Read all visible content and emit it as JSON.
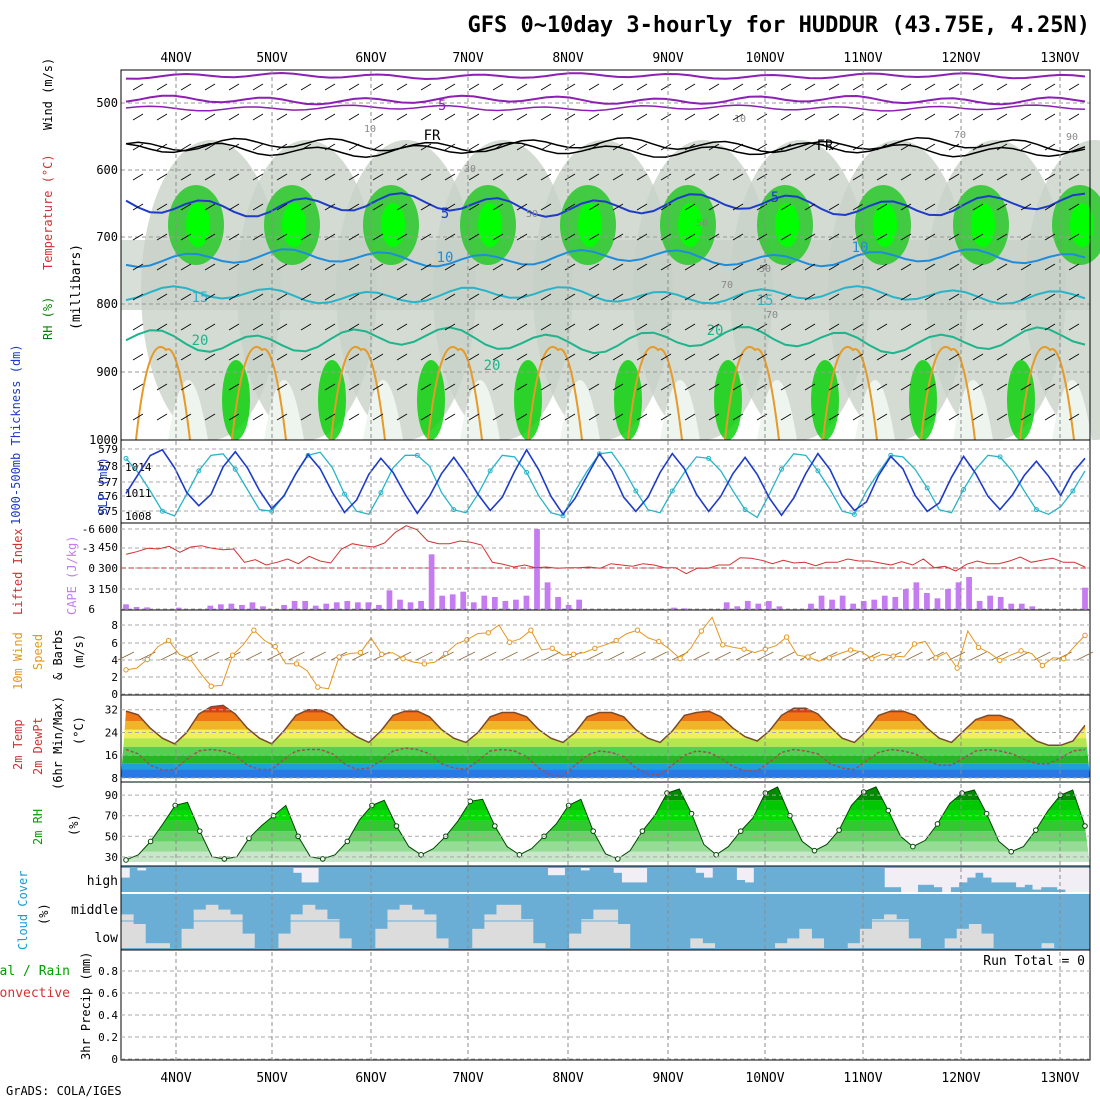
{
  "title": "GFS 0~10day 3-hourly for HUDDUR (43.75E, 4.25N)",
  "footer": "GrADS: COLA/IGES",
  "run_total": "Run Total = 0",
  "colors": {
    "rh_green": "#00e600",
    "temp_orange": "#e69a28",
    "wind_purple": "#8c1fb4",
    "slp_blue": "#1e3cc8",
    "thick_cyan": "#28b4c8",
    "cape_purple": "#c47cf0",
    "li_red": "#d23232",
    "wind_speed": "#e6961e",
    "cloud_blue": "#6aaed6",
    "precip_green": "#00b400"
  },
  "chart_data": {
    "type": "multi-panel",
    "days": [
      "4NOV",
      "5NOV",
      "6NOV",
      "7NOV",
      "8NOV",
      "9NOV",
      "10NOV",
      "11NOV",
      "12NOV",
      "13NOV"
    ],
    "panels": [
      {
        "id": "cross-section",
        "ylabel_parts": [
          "RH (%)",
          "Temperature (°C)",
          "Wind (m/s)"
        ],
        "ylabel2": "(millibars)",
        "yticks": [
          "500",
          "600",
          "700",
          "800",
          "900",
          "1000"
        ],
        "contour_labels": [
          "-5",
          "FR",
          "FR",
          "5",
          "10",
          "15",
          "20",
          "20",
          "10",
          "5",
          "15",
          "20",
          "10",
          "10",
          "30",
          "50",
          "50",
          "70",
          "70",
          "70",
          "90",
          "50"
        ]
      },
      {
        "id": "slp-thickness",
        "ylabel_left": "1000-500mb Thickness (dm)",
        "ylabel_right": "SLP (mb)",
        "yticks_left": [
          "579",
          "578",
          "577",
          "576",
          "575"
        ],
        "yticks_right": [
          "1014",
          "1011",
          "1008"
        ],
        "thickness": [
          578.4,
          577.5,
          576.3,
          575.0,
          574.7,
          576.1,
          577.6,
          578.6,
          578.7,
          577.7,
          576.4,
          575.1,
          575.0,
          576.0,
          577.4,
          578.6,
          578.8,
          577.8,
          576.1,
          575.0,
          574.8,
          576.2,
          577.8,
          578.6,
          578.6,
          577.9,
          576.2,
          575.1,
          574.9,
          576.1,
          577.6,
          578.6,
          578.5,
          577.5,
          576.0,
          574.9,
          574.7,
          576.3,
          577.6,
          578.7,
          578.8,
          577.7,
          576.3,
          575.1,
          574.9,
          576.3,
          577.5,
          578.5,
          578.4,
          577.6,
          576.3,
          575.1,
          574.6,
          576.1,
          577.7,
          578.7,
          578.6,
          577.6,
          576.4,
          575.0,
          574.8,
          576.3,
          577.5,
          578.6,
          578.5,
          577.7,
          576.5,
          575.1,
          574.9,
          576.4,
          577.7,
          578.6,
          578.5,
          577.6,
          576.3,
          575.1,
          574.8,
          575.3,
          576.3,
          577.6
        ],
        "slp": [
          1010.5,
          1012.5,
          1014.5,
          1015.1,
          1013.2,
          1010.6,
          1009.2,
          1010.4,
          1013.3,
          1014.9,
          1013.2,
          1010.8,
          1008.9,
          1010.2,
          1012.6,
          1014.6,
          1013.1,
          1010.6,
          1008.5,
          1009.8,
          1012.5,
          1014.2,
          1012.7,
          1010.4,
          1008.4,
          1010.2,
          1012.6,
          1014.3,
          1012.5,
          1010.4,
          1008.7,
          1010.1,
          1012.8,
          1015.1,
          1013.0,
          1010.2,
          1008.3,
          1010.0,
          1012.4,
          1014.7,
          1012.9,
          1010.1,
          1008.6,
          1010.1,
          1012.7,
          1014.7,
          1013.1,
          1010.4,
          1008.6,
          1010.2,
          1012.6,
          1014.3,
          1012.5,
          1010.0,
          1008.2,
          1010.0,
          1012.6,
          1014.7,
          1013.0,
          1010.3,
          1008.7,
          1009.6,
          1012.4,
          1014.4,
          1013.1,
          1010.3,
          1008.6,
          1009.5,
          1012.2,
          1014.4,
          1012.6,
          1010.2,
          1008.8,
          1010.3,
          1012.4,
          1013.9,
          1012.3,
          1010.3,
          1012.7,
          1014.2
        ]
      },
      {
        "id": "cape-li",
        "ylabel_left": "Lifted Index",
        "ylabel_right": "CAPE (J/kg)",
        "yticks_left": [
          "-6",
          "-3",
          "0",
          "3",
          "6"
        ],
        "yticks_right": [
          "600",
          "450",
          "300",
          "150"
        ],
        "cape": [
          35,
          15,
          12,
          0,
          0,
          10,
          0,
          0,
          25,
          35,
          40,
          30,
          50,
          20,
          0,
          30,
          60,
          60,
          25,
          40,
          50,
          60,
          50,
          50,
          30,
          140,
          70,
          50,
          60,
          410,
          100,
          110,
          130,
          50,
          100,
          90,
          60,
          70,
          100,
          600,
          200,
          90,
          30,
          70,
          0,
          0,
          0,
          0,
          0,
          0,
          0,
          0,
          10,
          5,
          0,
          0,
          0,
          50,
          20,
          60,
          40,
          60,
          20,
          0,
          0,
          40,
          100,
          70,
          100,
          40,
          60,
          70,
          100,
          90,
          150,
          200,
          120,
          80,
          150,
          200,
          240,
          60,
          100,
          90,
          40,
          40,
          20,
          0,
          0,
          0,
          0,
          160
        ],
        "li": [
          2.2,
          2.6,
          3.1,
          3.0,
          3.4,
          2.5,
          3.3,
          3.5,
          3.1,
          2.9,
          3.0,
          1.0,
          1.4,
          0.6,
          1.0,
          1.5,
          0.8,
          1.9,
          1.2,
          0.9,
          3.0,
          3.8,
          3.5,
          3.3,
          3.9,
          5.5,
          6.5,
          5.9,
          4.2,
          3.8,
          3.8,
          4.2,
          4.0,
          3.6,
          1.0,
          0.7,
          0.3,
          0.6,
          0.2,
          0.3,
          0.1,
          0.2,
          0.2,
          0.3,
          0.1,
          0.8,
          0.6,
          0.4,
          0.8,
          0.6,
          0.2,
          0.2,
          -0.7,
          0.1,
          0.1,
          0.6,
          0.6,
          1.7,
          1.6,
          1.3,
          0.8,
          1.3,
          0.9,
          1.0,
          0.5,
          1.0,
          1.0,
          1.5,
          1.2,
          1.2,
          0.9,
          0.6,
          1.1,
          0.6,
          1.5,
          0.2,
          0.4,
          -0.3,
          0.7,
          1.2,
          0.8,
          0.8,
          1.2,
          1.8,
          1.0,
          1.3,
          1.6,
          1.0,
          1.0,
          0.3
        ]
      },
      {
        "id": "wind",
        "ylabel_parts": [
          "10m Wind",
          "Speed",
          "& Barbs"
        ],
        "ylabel2": "(m/s)",
        "yticks": [
          "8",
          "6",
          "4",
          "2",
          "0"
        ],
        "speed": [
          2.8,
          3.0,
          4.0,
          5.5,
          6.2,
          4.6,
          4.1,
          2.4,
          0.9,
          1.0,
          4.5,
          5.7,
          7.4,
          6.2,
          5.5,
          3.5,
          3.5,
          2.7,
          0.8,
          0.6,
          4.3,
          4.7,
          4.8,
          6.5,
          4.6,
          4.8,
          4.1,
          3.7,
          3.5,
          3.7,
          4.7,
          5.8,
          6.3,
          7.0,
          7.1,
          8.0,
          6.0,
          6.4,
          7.4,
          5.1,
          5.3,
          4.5,
          4.6,
          4.8,
          5.3,
          5.7,
          6.2,
          7.0,
          7.4,
          6.5,
          6.1,
          5.2,
          4.1,
          5.3,
          7.3,
          8.9,
          5.7,
          5.4,
          5.2,
          4.8,
          5.2,
          5.6,
          6.6,
          4.5,
          4.3,
          3.8,
          4.2,
          4.7,
          5.1,
          4.9,
          4.1,
          4.6,
          4.4,
          4.3,
          5.8,
          6.1,
          4.2,
          4.8,
          3.0,
          7.3,
          5.4,
          4.8,
          3.9,
          4.5,
          5.0,
          4.7,
          3.3,
          4.2,
          4.1,
          5.5,
          6.8
        ]
      },
      {
        "id": "temp",
        "ylabel_parts": [
          "2m Temp",
          "2m DewPt",
          "(6hr Min/Max)"
        ],
        "ylabel2": "(°C)",
        "yticks": [
          "32",
          "24",
          "16",
          "8"
        ],
        "temp": [
          31.5,
          30.2,
          25.5,
          22,
          20,
          24,
          30.5,
          33,
          33.5,
          30.5,
          25.5,
          22,
          20,
          24.5,
          30,
          32,
          32,
          30,
          25.5,
          22.5,
          20.5,
          24.5,
          30,
          31.5,
          31.5,
          29.5,
          25,
          22,
          20.5,
          24,
          29.5,
          31,
          31,
          29.5,
          25,
          22,
          20.5,
          24,
          29.5,
          31,
          31,
          29.5,
          25,
          22,
          20.5,
          24.5,
          30,
          31,
          31.5,
          29.5,
          25.5,
          22.5,
          21,
          24.5,
          30,
          32.5,
          32.5,
          30.5,
          26,
          22,
          20.5,
          24.5,
          30,
          31.5,
          31.5,
          30,
          25.5,
          22,
          20.5,
          24.5,
          28.5,
          30,
          30,
          28.5,
          24.5,
          21,
          19.5,
          19.5,
          21,
          26.5
        ],
        "dewpt": [
          18,
          16.5,
          12.5,
          10.8,
          11,
          14.5,
          17.5,
          18,
          17.5,
          16,
          12.5,
          11,
          11,
          14.5,
          17.5,
          18,
          18,
          16.5,
          13,
          11,
          11.5,
          14,
          17.5,
          18.5,
          18,
          16.5,
          13,
          11.5,
          11,
          14,
          17.5,
          18,
          17.5,
          15.5,
          11.5,
          9,
          8.7,
          12.5,
          16,
          17.5,
          17,
          15.5,
          11.5,
          9.5,
          9,
          12.5,
          16,
          17.5,
          17,
          15,
          12,
          10.5,
          10.5,
          13.5,
          17,
          18,
          17.5,
          16.5,
          13,
          11.5,
          11,
          14,
          17,
          18,
          17.5,
          16.5,
          14,
          12.5,
          12.5,
          15,
          17.5,
          18,
          17.5,
          16.5,
          14.5,
          13,
          13,
          15,
          17.5,
          18
        ]
      },
      {
        "id": "rh",
        "ylabel": "2m RH",
        "ylabel2": "(%)",
        "yticks": [
          "90",
          "70",
          "50",
          "30"
        ],
        "rh": [
          27,
          32,
          45,
          62,
          80,
          83,
          55,
          30,
          28,
          30,
          48,
          60,
          70,
          80,
          50,
          30,
          28,
          32,
          45,
          66,
          80,
          85,
          60,
          40,
          32,
          38,
          50,
          65,
          84,
          86,
          60,
          40,
          32,
          38,
          50,
          62,
          80,
          86,
          55,
          33,
          28,
          36,
          55,
          70,
          92,
          96,
          72,
          42,
          32,
          40,
          55,
          68,
          92,
          98,
          70,
          45,
          36,
          42,
          56,
          80,
          93,
          98,
          75,
          50,
          40,
          46,
          62,
          82,
          92,
          95,
          72,
          45,
          35,
          40,
          56,
          75,
          90,
          95,
          60
        ]
      },
      {
        "id": "cloud",
        "ylabel": "Cloud Cover",
        "ylabel2": "(%)",
        "levels": [
          "high",
          "middle",
          "low"
        ],
        "high": [
          40,
          0,
          10,
          0,
          0,
          0,
          0,
          0,
          0,
          0,
          0,
          0,
          0,
          0,
          0,
          0,
          0,
          0,
          0,
          0,
          0,
          20,
          60,
          60,
          0,
          0,
          0,
          0,
          0,
          0,
          0,
          0,
          0,
          0,
          0,
          0,
          0,
          0,
          0,
          0,
          0,
          0,
          0,
          0,
          0,
          0,
          0,
          0,
          0,
          0,
          0,
          0,
          30,
          30,
          0,
          0,
          10,
          0,
          0,
          0,
          20,
          60,
          60,
          60,
          0,
          0,
          0,
          0,
          0,
          0,
          20,
          40,
          0,
          0,
          0,
          50,
          60,
          0,
          0,
          0,
          0,
          0,
          0,
          0,
          0,
          0,
          0,
          0,
          0,
          0,
          0,
          0,
          0,
          80,
          80,
          100,
          100,
          70,
          70,
          80,
          100,
          80,
          60,
          40,
          20,
          40,
          60,
          60,
          60,
          80,
          70,
          90,
          80,
          80,
          90,
          100,
          100,
          100
        ],
        "middle": [
          0,
          0,
          0,
          0,
          0,
          0,
          0,
          0,
          0,
          0,
          0,
          0,
          0,
          0,
          0,
          0,
          0,
          0,
          0,
          0,
          0,
          0,
          0,
          0,
          0,
          0,
          0,
          0,
          0,
          0,
          0,
          0,
          0,
          0,
          0,
          0,
          0,
          0,
          0,
          0,
          0,
          0,
          0,
          0,
          0,
          0,
          0,
          0,
          0,
          0,
          0,
          0,
          0,
          0,
          0,
          0,
          0,
          0,
          0,
          0,
          0,
          0,
          0,
          0,
          0,
          0,
          0,
          0,
          0,
          0,
          0,
          0,
          0,
          0,
          0,
          0,
          0,
          0,
          0,
          0,
          0,
          0,
          0,
          0,
          0,
          0,
          0,
          0,
          0,
          0,
          0,
          0,
          0,
          0,
          0,
          0,
          0,
          0,
          0,
          0,
          0,
          0,
          0,
          0,
          0,
          0,
          0,
          0,
          0,
          0,
          0,
          0,
          0,
          0,
          0,
          0,
          0,
          0,
          0
        ],
        "low": [
          70,
          50,
          10,
          10,
          0,
          40,
          80,
          90,
          80,
          70,
          30,
          0,
          0,
          30,
          70,
          90,
          80,
          60,
          20,
          0,
          0,
          40,
          80,
          90,
          80,
          70,
          20,
          0,
          0,
          40,
          70,
          90,
          90,
          60,
          10,
          0,
          0,
          30,
          60,
          80,
          80,
          50,
          0,
          0,
          0,
          0,
          0,
          20,
          10,
          0,
          0,
          0,
          0,
          0,
          10,
          20,
          40,
          20,
          0,
          0,
          10,
          40,
          60,
          70,
          60,
          20,
          0,
          0,
          20,
          40,
          50,
          30,
          0,
          0,
          0,
          0,
          10,
          0,
          0,
          0
        ]
      },
      {
        "id": "precip",
        "ylabel_parts": [
          "Total / Rain",
          "Convective"
        ],
        "ylabel2": "3hr Precip (mm)",
        "yticks": [
          "0.8",
          "0.6",
          "0.4",
          "0.2",
          "0"
        ],
        "total": 0
      }
    ]
  }
}
